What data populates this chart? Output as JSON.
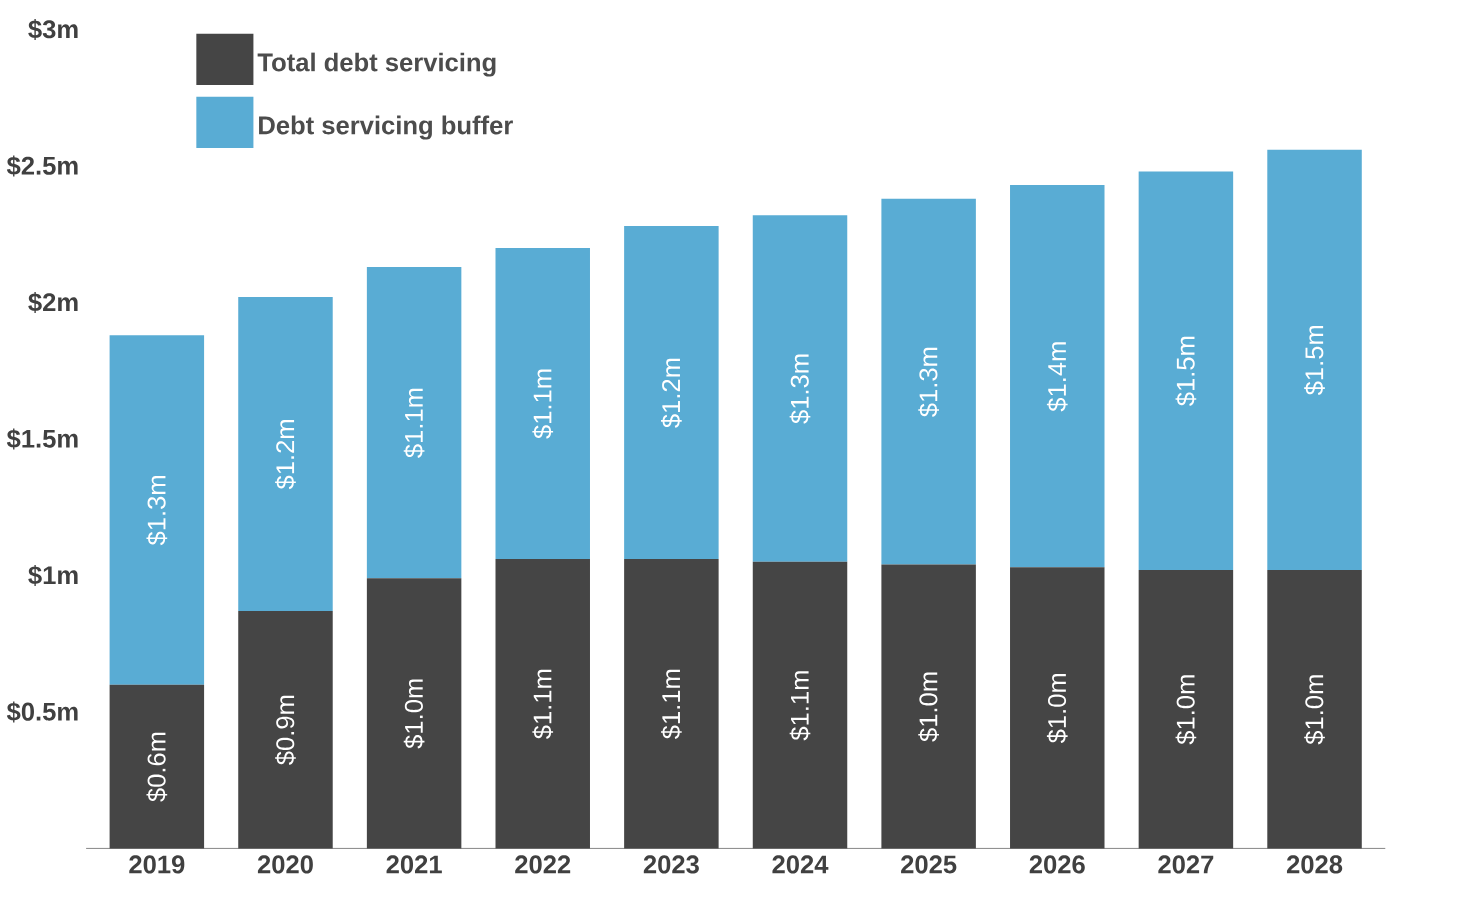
{
  "chart_data": {
    "type": "bar",
    "stacked": true,
    "categories": [
      "2019",
      "2020",
      "2021",
      "2022",
      "2023",
      "2024",
      "2025",
      "2026",
      "2027",
      "2028"
    ],
    "series": [
      {
        "name": "Total debt servicing",
        "color": "#454545",
        "values": [
          0.6,
          0.87,
          0.99,
          1.06,
          1.06,
          1.05,
          1.04,
          1.03,
          1.02,
          1.02
        ],
        "value_labels": [
          "$0.6m",
          "$0.9m",
          "$1.0m",
          "$1.1m",
          "$1.1m",
          "$1.1m",
          "$1.0m",
          "$1.0m",
          "$1.0m",
          "$1.0m"
        ]
      },
      {
        "name": "Debt servicing buffer",
        "color": "#59acd4",
        "values": [
          1.28,
          1.15,
          1.14,
          1.14,
          1.22,
          1.27,
          1.34,
          1.4,
          1.46,
          1.54
        ],
        "value_labels": [
          "$1.3m",
          "$1.2m",
          "$1.1m",
          "$1.1m",
          "$1.2m",
          "$1.3m",
          "$1.3m",
          "$1.4m",
          "$1.5m",
          "$1.5m"
        ]
      }
    ],
    "ylim": [
      0,
      3
    ],
    "yticks": [
      {
        "value": 0.5,
        "label": "$0.5m"
      },
      {
        "value": 1,
        "label": "$1m"
      },
      {
        "value": 1.5,
        "label": "$1.5m"
      },
      {
        "value": 2,
        "label": "$2m"
      },
      {
        "value": 2.5,
        "label": "$2.5m"
      },
      {
        "value": 3,
        "label": "$3m"
      }
    ],
    "legend": "top left"
  }
}
